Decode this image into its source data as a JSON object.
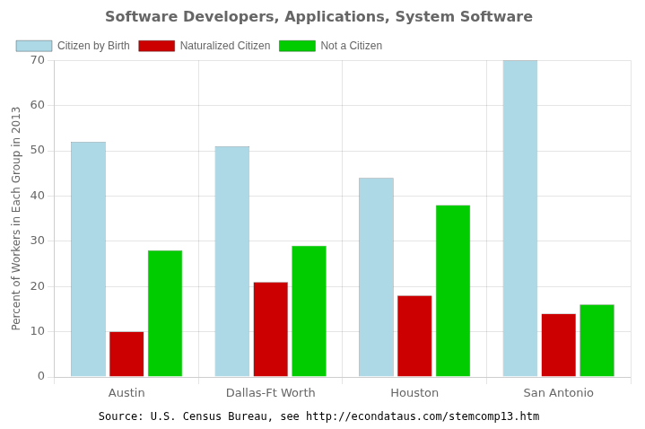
{
  "chart_data": {
    "type": "bar",
    "title": "Software Developers, Applications, System Software",
    "y_label": "Percent of Workers in Each Group in 2013",
    "categories": [
      "Austin",
      "Dallas-Ft Worth",
      "Houston",
      "San Antonio"
    ],
    "series": [
      {
        "name": "Citizen by Birth",
        "color": "#ADD8E6",
        "values": [
          52,
          51,
          44,
          70
        ]
      },
      {
        "name": "Naturalized Citizen",
        "color": "#CC0000",
        "values": [
          10,
          21,
          18,
          14
        ]
      },
      {
        "name": "Not a Citizen",
        "color": "#00CC00",
        "values": [
          28,
          29,
          38,
          16
        ]
      }
    ],
    "ylim": [
      0,
      70
    ],
    "yticks": [
      0,
      10,
      20,
      30,
      40,
      50,
      60,
      70
    ],
    "grid": true,
    "legend": "upper left",
    "annotations": [
      "Source: U.S. Census Bureau, see http://econdataus.com/stemcomp13.htm"
    ]
  }
}
